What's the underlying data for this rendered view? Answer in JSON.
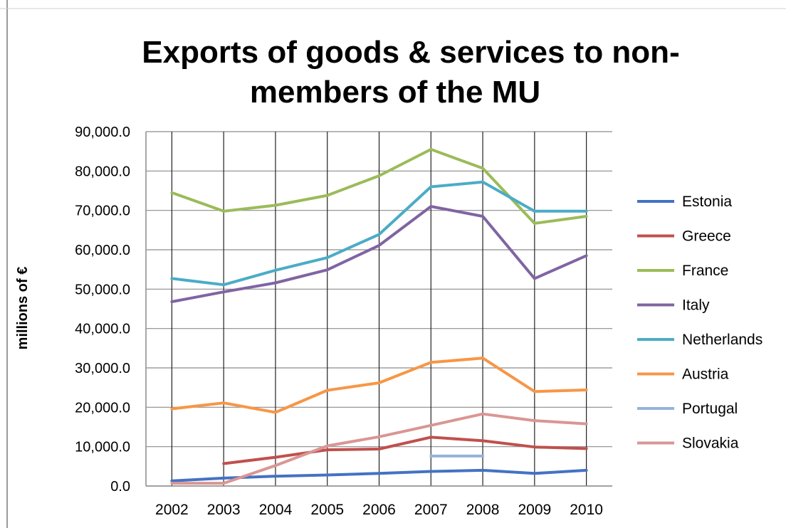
{
  "chart_data": {
    "type": "line",
    "title": "Exports of goods & services to non-members of the MU",
    "title_lines": [
      "Exports of goods & services to non-",
      "members of the MU"
    ],
    "xlabel": "",
    "ylabel": "millions of €",
    "ylim": [
      0,
      90000
    ],
    "yticks": [
      0,
      10000,
      20000,
      30000,
      40000,
      50000,
      60000,
      70000,
      80000,
      90000
    ],
    "ytick_labels": [
      "0.0",
      "10,000.0",
      "20,000.0",
      "30,000.0",
      "40,000.0",
      "50,000.0",
      "60,000.0",
      "70,000.0",
      "80,000.0",
      "90,000.0"
    ],
    "categories": [
      "2002",
      "2003",
      "2004",
      "2005",
      "2006",
      "2007",
      "2008",
      "2009",
      "2010"
    ],
    "grid": "horizontal and vertical",
    "legend_position": "right",
    "series": [
      {
        "name": "Estonia",
        "color": "#4472C4",
        "values": [
          1300,
          2000,
          2500,
          2800,
          3200,
          3700,
          4000,
          3200,
          4000
        ]
      },
      {
        "name": "Greece",
        "color": "#C0504D",
        "values": [
          null,
          5700,
          7300,
          9200,
          9400,
          12400,
          11500,
          9900,
          9500
        ]
      },
      {
        "name": "France",
        "color": "#9BBB59",
        "values": [
          74500,
          69800,
          71300,
          73800,
          78800,
          85500,
          80700,
          66700,
          68500
        ]
      },
      {
        "name": "Italy",
        "color": "#8064A2",
        "values": [
          46800,
          49300,
          51600,
          54900,
          61100,
          71000,
          68500,
          52700,
          58500
        ]
      },
      {
        "name": "Netherlands",
        "color": "#4BACC6",
        "values": [
          52700,
          51100,
          54800,
          58000,
          63900,
          76000,
          77200,
          69800,
          69800
        ]
      },
      {
        "name": "Austria",
        "color": "#F79646",
        "values": [
          19600,
          21100,
          18700,
          24300,
          26200,
          31400,
          32500,
          24000,
          24400
        ]
      },
      {
        "name": "Portugal",
        "color": "#95B3D7",
        "values": [
          null,
          null,
          null,
          null,
          null,
          7600,
          7600,
          null,
          null
        ]
      },
      {
        "name": "Slovakia",
        "color": "#D99694",
        "values": [
          700,
          700,
          5200,
          10200,
          12500,
          15400,
          18300,
          16600,
          15800
        ]
      }
    ]
  }
}
